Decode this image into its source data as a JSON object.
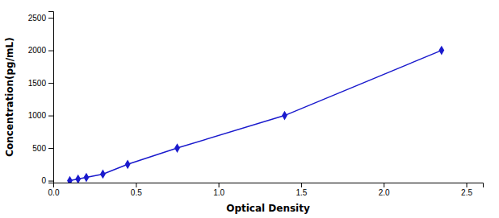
{
  "chart_data": {
    "type": "line",
    "x": [
      0.1,
      0.15,
      0.2,
      0.3,
      0.45,
      0.75,
      1.4,
      2.35
    ],
    "values": [
      0,
      25,
      50,
      100,
      250,
      500,
      1000,
      2000
    ],
    "color": "#1a1acd",
    "marker": "diamond",
    "line_style": "solid",
    "x_label": "Optical Density",
    "y_label": "Concentration(pg/mL)",
    "xlim": [
      0.0,
      2.6
    ],
    "ylim": [
      -30,
      2600
    ],
    "xticks": [
      {
        "value": 0,
        "label": "0.0"
      },
      0.5,
      {
        "value": 1,
        "label": "1.0"
      },
      1.5,
      {
        "value": 2,
        "label": "2.0"
      },
      2.5
    ],
    "yticks": [
      0,
      500,
      1000,
      1500,
      2000,
      2500
    ],
    "grid": false
  }
}
